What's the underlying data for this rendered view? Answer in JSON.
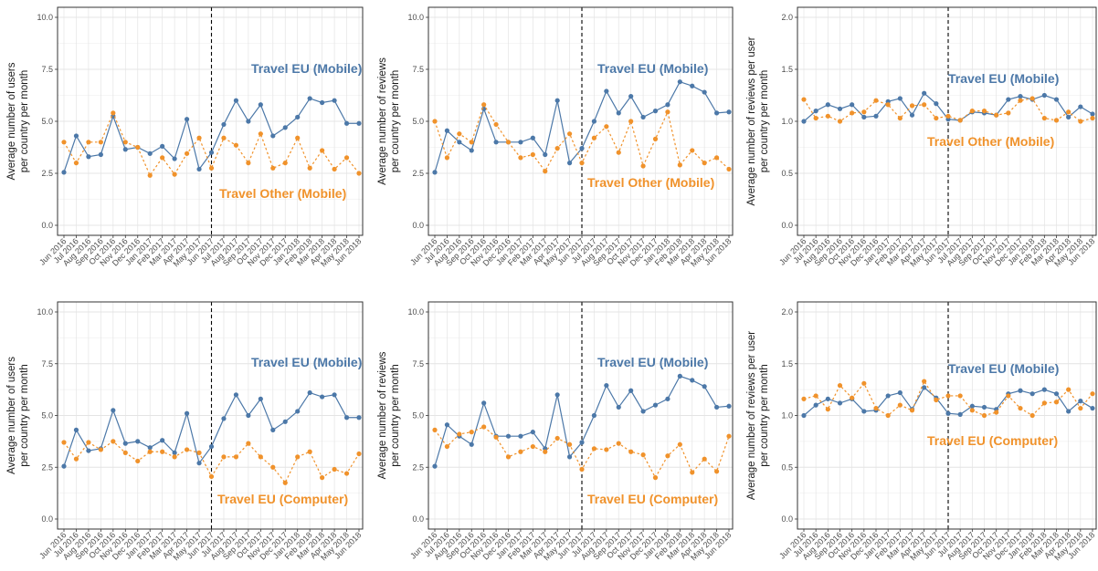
{
  "colors": {
    "series_a": "#4c78a8",
    "series_b": "#f0922b",
    "grid_major": "#e4e4e4",
    "grid_minor": "#f2f2f2",
    "axis": "#333333"
  },
  "x_categories": [
    "Jun 2016",
    "Jul 2016",
    "Aug 2016",
    "Sep 2016",
    "Oct 2016",
    "Nov 2016",
    "Dec 2016",
    "Jan 2017",
    "Feb 2017",
    "Mar 2017",
    "Apr 2017",
    "May 2017",
    "Jun 2017",
    "Jul 2017",
    "Aug 2017",
    "Sep 2017",
    "Oct 2017",
    "Nov 2017",
    "Dec 2017",
    "Jan 2018",
    "Feb 2018",
    "Mar 2018",
    "Apr 2018",
    "May 2018",
    "Jun 2018"
  ],
  "chart_data": [
    {
      "type": "line",
      "ylabel": [
        "Average number of users",
        "per country per month"
      ],
      "ylim": [
        0,
        10
      ],
      "yticks": [
        "0.0",
        "2.5",
        "5.0",
        "7.5",
        "10.0"
      ],
      "ytick_values": [
        0,
        2.5,
        5,
        7.5,
        10
      ],
      "vline_category": "Jun 2017",
      "grid": true,
      "series": [
        {
          "name": "Travel EU (Mobile)",
          "style": "solid",
          "values": [
            2.55,
            4.3,
            3.3,
            3.4,
            5.25,
            3.65,
            3.75,
            3.45,
            3.8,
            3.2,
            5.1,
            2.7,
            3.5,
            4.85,
            6.0,
            5.0,
            5.8,
            4.3,
            4.7,
            5.2,
            6.1,
            5.9,
            6.0,
            4.9,
            4.9
          ]
        },
        {
          "name": "Travel Other (Mobile)",
          "style": "dashed",
          "values": [
            4.0,
            3.0,
            4.0,
            4.0,
            5.4,
            4.0,
            3.75,
            2.4,
            3.25,
            2.45,
            3.45,
            4.2,
            2.75,
            4.2,
            3.85,
            3.0,
            4.4,
            2.75,
            3.0,
            4.2,
            2.75,
            3.6,
            2.7,
            3.25,
            2.5
          ]
        }
      ]
    },
    {
      "type": "line",
      "ylabel": [
        "Average number of reviews",
        "per country per month"
      ],
      "ylim": [
        0,
        10
      ],
      "yticks": [
        "0.0",
        "2.5",
        "5.0",
        "7.5",
        "10.0"
      ],
      "ytick_values": [
        0,
        2.5,
        5,
        7.5,
        10
      ],
      "vline_category": "Jun 2017",
      "grid": true,
      "series": [
        {
          "name": "Travel EU (Mobile)",
          "style": "solid",
          "values": [
            2.55,
            4.55,
            4.0,
            3.6,
            5.6,
            4.0,
            4.0,
            4.0,
            4.2,
            3.4,
            6.0,
            3.0,
            3.7,
            5.0,
            6.45,
            5.4,
            6.2,
            5.2,
            5.5,
            5.8,
            6.9,
            6.7,
            6.4,
            5.4,
            5.45
          ]
        },
        {
          "name": "Travel Other (Mobile)",
          "style": "dashed",
          "values": [
            5.0,
            3.25,
            4.4,
            4.0,
            5.8,
            4.85,
            4.0,
            3.25,
            3.4,
            2.6,
            3.7,
            4.4,
            3.0,
            4.2,
            4.75,
            3.5,
            5.0,
            2.85,
            4.15,
            5.45,
            2.9,
            3.6,
            3.0,
            3.25,
            2.7
          ]
        }
      ]
    },
    {
      "type": "line",
      "ylabel": [
        "Average number of reviews per user",
        "per country per month"
      ],
      "ylim": [
        0,
        2
      ],
      "yticks": [
        "0.0",
        "0.5",
        "1.0",
        "1.5",
        "2.0"
      ],
      "ytick_values": [
        0,
        0.5,
        1,
        1.5,
        2
      ],
      "vline_category": "Jun 2017",
      "grid": true,
      "series": [
        {
          "name": "Travel EU (Mobile)",
          "style": "solid",
          "values": [
            1.0,
            1.1,
            1.16,
            1.12,
            1.16,
            1.04,
            1.05,
            1.19,
            1.22,
            1.06,
            1.27,
            1.17,
            1.02,
            1.01,
            1.09,
            1.08,
            1.06,
            1.21,
            1.24,
            1.21,
            1.25,
            1.21,
            1.04,
            1.14,
            1.07
          ]
        },
        {
          "name": "Travel Other (Mobile)",
          "style": "dashed",
          "values": [
            1.21,
            1.03,
            1.05,
            1.0,
            1.08,
            1.09,
            1.2,
            1.16,
            1.03,
            1.15,
            1.16,
            1.03,
            1.05,
            1.01,
            1.1,
            1.1,
            1.06,
            1.08,
            1.2,
            1.22,
            1.03,
            1.01,
            1.09,
            1.0,
            1.03
          ]
        }
      ]
    },
    {
      "type": "line",
      "ylabel": [
        "Average number of users",
        "per country per month"
      ],
      "ylim": [
        0,
        10
      ],
      "yticks": [
        "0.0",
        "2.5",
        "5.0",
        "7.5",
        "10.0"
      ],
      "ytick_values": [
        0,
        2.5,
        5,
        7.5,
        10
      ],
      "vline_category": "Jun 2017",
      "grid": true,
      "series": [
        {
          "name": "Travel EU (Mobile)",
          "style": "solid",
          "values": [
            2.55,
            4.3,
            3.3,
            3.4,
            5.25,
            3.65,
            3.75,
            3.45,
            3.8,
            3.2,
            5.1,
            2.7,
            3.5,
            4.85,
            6.0,
            5.0,
            5.8,
            4.3,
            4.7,
            5.2,
            6.1,
            5.9,
            6.0,
            4.9,
            4.9
          ]
        },
        {
          "name": "Travel EU (Computer)",
          "style": "dashed",
          "values": [
            3.7,
            2.9,
            3.7,
            3.35,
            3.75,
            3.2,
            2.8,
            3.25,
            3.25,
            3.0,
            3.35,
            3.2,
            2.05,
            3.0,
            3.0,
            3.65,
            3.0,
            2.5,
            1.75,
            3.0,
            3.25,
            2.0,
            2.4,
            2.2,
            3.15
          ]
        }
      ]
    },
    {
      "type": "line",
      "ylabel": [
        "Average number of reviews",
        "per country per month"
      ],
      "ylim": [
        0,
        10
      ],
      "yticks": [
        "0.0",
        "2.5",
        "5.0",
        "7.5",
        "10.0"
      ],
      "ytick_values": [
        0,
        2.5,
        5,
        7.5,
        10
      ],
      "vline_category": "Jun 2017",
      "grid": true,
      "series": [
        {
          "name": "Travel EU (Mobile)",
          "style": "solid",
          "values": [
            2.55,
            4.55,
            4.0,
            3.6,
            5.6,
            4.0,
            4.0,
            4.0,
            4.2,
            3.4,
            6.0,
            3.0,
            3.7,
            5.0,
            6.45,
            5.4,
            6.2,
            5.2,
            5.5,
            5.8,
            6.9,
            6.7,
            6.4,
            5.4,
            5.45
          ]
        },
        {
          "name": "Travel EU (Computer)",
          "style": "dashed",
          "values": [
            4.3,
            3.5,
            4.1,
            4.2,
            4.45,
            3.95,
            3.0,
            3.25,
            3.5,
            3.25,
            3.9,
            3.6,
            2.4,
            3.4,
            3.35,
            3.65,
            3.25,
            3.1,
            2.0,
            3.05,
            3.6,
            2.25,
            2.9,
            2.3,
            4.0
          ]
        }
      ]
    },
    {
      "type": "line",
      "ylabel": [
        "Average number of reviews per user",
        "per country per month"
      ],
      "ylim": [
        0,
        2
      ],
      "yticks": [
        "0.0",
        "0.5",
        "1.0",
        "1.5",
        "2.0"
      ],
      "ytick_values": [
        0,
        0.5,
        1,
        1.5,
        2
      ],
      "vline_category": "Jun 2017",
      "grid": true,
      "series": [
        {
          "name": "Travel EU (Mobile)",
          "style": "solid",
          "values": [
            1.0,
            1.1,
            1.16,
            1.12,
            1.16,
            1.04,
            1.05,
            1.19,
            1.22,
            1.06,
            1.27,
            1.17,
            1.02,
            1.01,
            1.09,
            1.08,
            1.06,
            1.21,
            1.24,
            1.21,
            1.25,
            1.21,
            1.04,
            1.14,
            1.07
          ]
        },
        {
          "name": "Travel EU (Computer)",
          "style": "dashed",
          "values": [
            1.16,
            1.19,
            1.06,
            1.29,
            1.17,
            1.31,
            1.07,
            1.0,
            1.1,
            1.05,
            1.33,
            1.15,
            1.19,
            1.19,
            1.05,
            1.0,
            1.03,
            1.19,
            1.07,
            1.0,
            1.12,
            1.13,
            1.25,
            1.07,
            1.21
          ]
        }
      ]
    }
  ]
}
